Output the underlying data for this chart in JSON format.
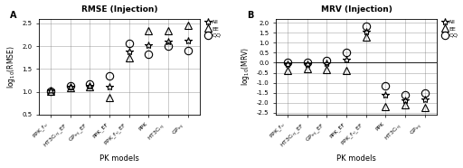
{
  "categories": [
    "PPK_fu",
    "HT3Cinj_EF",
    "GPinj_EF",
    "PPK_EF",
    "PPK_fu_EF",
    "PPK",
    "HT3Cinj",
    "GPinj"
  ],
  "rmse": {
    "All": [
      1.03,
      1.12,
      1.13,
      1.12,
      1.88,
      2.02,
      2.1,
      2.13
    ],
    "EE": [
      1.01,
      1.1,
      1.12,
      0.87,
      1.75,
      2.35,
      2.35,
      2.45
    ],
    "QQ": [
      1.02,
      1.14,
      1.17,
      1.35,
      2.07,
      1.82,
      2.0,
      1.9
    ]
  },
  "rmse_ylim": [
    0.5,
    2.6
  ],
  "rmse_yticks": [
    0.5,
    1.0,
    1.5,
    2.0,
    2.5
  ],
  "rmse_ylabel": "log$_{10}$(RMSE)",
  "rmse_title": "RMSE (Injection)",
  "mrv": {
    "All": [
      -0.05,
      -0.05,
      -0.03,
      0.15,
      1.55,
      -1.6,
      -1.9,
      -1.85
    ],
    "EE": [
      -0.4,
      -0.3,
      -0.35,
      -0.38,
      1.3,
      -2.2,
      -2.1,
      -2.25
    ],
    "QQ": [
      0.02,
      0.04,
      0.1,
      0.52,
      1.82,
      -1.15,
      -1.6,
      -1.5
    ]
  },
  "mrv_ylim": [
    -2.6,
    2.2
  ],
  "mrv_yticks": [
    -2.5,
    -2.0,
    -1.5,
    -1.0,
    -0.5,
    0.0,
    0.5,
    1.0,
    1.5,
    2.0
  ],
  "mrv_ylabel": "log$_{10}$(MRV)",
  "mrv_title": "MRV (Injection)",
  "panel_labels": [
    "A",
    "B"
  ],
  "xlabel": "PK models",
  "marker_All": "*",
  "marker_EE": "^",
  "marker_QQ": "o",
  "color": "black",
  "markersize_all": 6,
  "markersize_ee": 6,
  "markersize_qq": 6,
  "legend_labels": [
    "All",
    "EE",
    "QQ"
  ]
}
